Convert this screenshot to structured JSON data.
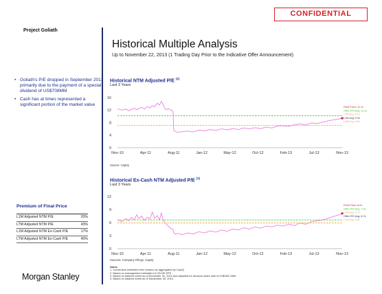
{
  "header": {
    "confidential": "CONFIDENTIAL",
    "project": "Project Goliath",
    "title": "Historical Multiple Analysis",
    "subtitle": "Up to November 22, 2013 (1 Trading Day Prior to the Indicative Offer Announcement)"
  },
  "sidebar": {
    "bullets": [
      "Goliath's P/E dropped in September 2011 primarily due to the payment of a special dividend of US$708MM",
      "Cash has at times represented a significant portion of the market value"
    ],
    "premium_title": "Premium of Final Price",
    "premium_rows": [
      {
        "label": "L1M Adjusted NTM P/E",
        "value": "20%"
      },
      {
        "label": "LTM Adjusted NTM P/E",
        "value": "43%"
      },
      {
        "label": "L1M Adjusted NTM Ex-Cash P/E",
        "value": "17%"
      },
      {
        "label": "LTM Adjusted NTM Ex-Cash P/E",
        "value": "40%"
      }
    ],
    "logo": "Morgan Stanley"
  },
  "colors": {
    "navy": "#1b2d8a",
    "red": "#d21f2a",
    "line": "#f07be0",
    "green": "#3cc83c",
    "orange": "#f4a93a"
  },
  "chart_data": [
    {
      "type": "line",
      "title": "Historical NTM Adjusted P/E",
      "title_superscript": "(1)",
      "subtitle": "Last 3 Years",
      "source": "Source: CapIQ",
      "x_tick_labels": [
        "Nov-10",
        "Apr-11",
        "Aug-11",
        "Jan-12",
        "May-12",
        "Oct-12",
        "Feb-13",
        "Jul-13",
        "Nov-13"
      ],
      "ylim": [
        0,
        16
      ],
      "y_ticks": [
        0,
        4,
        8,
        12,
        16
      ],
      "series": [
        {
          "name": "",
          "x": [
            0,
            0.15,
            0.3,
            0.4,
            0.5,
            0.6,
            0.68,
            0.76,
            0.86,
            0.96,
            1.06,
            1.15,
            1.24,
            1.32,
            1.42,
            1.5,
            1.56,
            1.62,
            1.68,
            1.74,
            1.8,
            1.86,
            1.92,
            1.98,
            2.0,
            2.06,
            2.14,
            2.3,
            2.5,
            2.7,
            2.9,
            3.1,
            3.3,
            3.5,
            3.7,
            3.9,
            4.1,
            4.3,
            4.5,
            4.7,
            4.9,
            5.1,
            5.3,
            5.5,
            5.7,
            5.9,
            6.1,
            6.3,
            6.5,
            6.7,
            6.9,
            7.1,
            7.3,
            7.5,
            7.7,
            7.9,
            8.0
          ],
          "y": [
            12.4,
            12.0,
            12.3,
            11.8,
            12.2,
            12.6,
            12.1,
            12.5,
            12.9,
            12.3,
            13.1,
            12.7,
            13.4,
            13.0,
            14.2,
            13.6,
            14.8,
            13.9,
            12.6,
            12.1,
            12.5,
            12.2,
            12.0,
            11.4,
            5.6,
            5.2,
            4.9,
            5.1,
            5.3,
            5.0,
            5.6,
            5.4,
            5.8,
            5.5,
            6.0,
            5.7,
            6.1,
            5.8,
            6.3,
            6.0,
            6.4,
            6.1,
            6.6,
            6.3,
            6.9,
            7.0,
            6.8,
            7.3,
            7.6,
            7.2,
            7.9,
            7.7,
            8.1,
            8.6,
            8.9,
            9.2,
            9.4
          ]
        },
        {
          "name": "",
          "values": [
            10.2
          ]
        },
        {
          "name": "",
          "values": [
            7.1
          ]
        }
      ],
      "annotations": [
        "Final Price: 11.1x",
        "Offer IPO Avg: 11.1x",
        "LTM Avg: 9.0x",
        "L1M Avg: 9.3x",
        "L1M Avg: 6.6x"
      ]
    },
    {
      "type": "line",
      "title": "Historical Ex-Cash NTM Adjusted P/E",
      "title_superscript": "(1)",
      "subtitle": "Last 3 Years",
      "source": "Sources: Company Filings, CapIQ",
      "x_tick_labels": [
        "Nov-10",
        "Apr-11",
        "Aug-11",
        "Jan-12",
        "May-12",
        "Oct-12",
        "Feb-13",
        "Jul-13",
        "Nov-13"
      ],
      "ylim": [
        0,
        12
      ],
      "y_ticks": [
        0,
        3,
        6,
        9,
        12
      ],
      "series": [
        {
          "name": "",
          "x": [
            0,
            0.15,
            0.3,
            0.4,
            0.5,
            0.6,
            0.68,
            0.76,
            0.86,
            0.96,
            1.06,
            1.15,
            1.24,
            1.32,
            1.42,
            1.5,
            1.56,
            1.62,
            1.68,
            1.74,
            1.8,
            1.86,
            1.92,
            1.98,
            2.0,
            2.06,
            2.14,
            2.3,
            2.5,
            2.7,
            2.9,
            3.1,
            3.3,
            3.5,
            3.7,
            3.9,
            4.1,
            4.3,
            4.5,
            4.7,
            4.9,
            5.1,
            5.3,
            5.5,
            5.7,
            5.9,
            6.1,
            6.3,
            6.5,
            6.7,
            6.9,
            7.1,
            7.3,
            7.5,
            7.7,
            7.9,
            8.0
          ],
          "y": [
            6.6,
            6.2,
            6.9,
            6.4,
            7.2,
            6.6,
            7.8,
            6.9,
            7.5,
            6.5,
            7.2,
            6.8,
            8.4,
            7.0,
            7.6,
            6.6,
            8.2,
            6.8,
            6.0,
            5.6,
            5.2,
            4.9,
            4.6,
            4.4,
            3.7,
            3.3,
            3.5,
            3.2,
            3.6,
            3.4,
            3.9,
            3.6,
            4.1,
            3.8,
            4.3,
            4.0,
            4.5,
            4.3,
            4.8,
            4.5,
            5.0,
            4.7,
            5.2,
            5.0,
            5.4,
            5.2,
            5.6,
            5.3,
            5.9,
            5.6,
            6.2,
            6.4,
            6.6,
            7.0,
            7.4,
            7.8,
            8.1
          ]
        },
        {
          "name": "",
          "values": [
            6.6
          ]
        },
        {
          "name": "",
          "values": [
            5.9
          ]
        }
      ],
      "annotations": [
        "Final Price: 8.0x",
        "Offer IPO Avg: 7.5x",
        "LTM Avg: 5.7x",
        "Offer IPO Avg: 6.7x",
        "L1M Avg: 5.8x"
      ]
    }
  ],
  "notes": {
    "heading": "Notes",
    "items": [
      "1.   Consensus estimates from brokers as aggregated by CapIQ",
      "2.   Based on management estimates for 2014E EPS",
      "3.   Based on balance sheet as of December 31, 2012 and adjusted for Amazon share sale of US$155.1MM",
      "4.   Based on balance sheet as of September 30, 2013"
    ]
  }
}
